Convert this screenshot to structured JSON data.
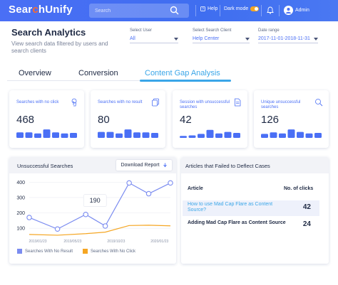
{
  "header": {
    "logo_prefix": "Sear",
    "logo_accent": "c",
    "logo_suffix": "hUnify",
    "search_placeholder": "Search",
    "help_label": "Help",
    "dark_mode_label": "Dark mode",
    "user_name": "Admin"
  },
  "page": {
    "title": "Search Analytics",
    "subtitle": "View search data filtered by users and search clients"
  },
  "filters": {
    "select_user": {
      "label": "Select User",
      "value": "All"
    },
    "search_client": {
      "label": "Select Search Client",
      "value": "Help Center"
    },
    "date_range": {
      "label": "Date range",
      "value": "2017-11-01-2018-11-31"
    }
  },
  "tabs": [
    {
      "label": "Overview",
      "active": false
    },
    {
      "label": "Conversion",
      "active": false
    },
    {
      "label": "Content Gap Analysis",
      "active": true
    }
  ],
  "metrics": [
    {
      "label": "Searches with no click",
      "value": "468",
      "icon": "touch-icon",
      "bars": [
        0.55,
        0.55,
        0.45,
        0.85,
        0.55,
        0.45,
        0.5
      ]
    },
    {
      "label": "Searches with no result",
      "value": "80",
      "icon": "copy-icon",
      "bars": [
        0.6,
        0.6,
        0.45,
        0.85,
        0.55,
        0.55,
        0.5
      ]
    },
    {
      "label": "Session with unsuccessful searches",
      "value": "42",
      "icon": "document-icon",
      "bars": [
        0.2,
        0.25,
        0.4,
        0.8,
        0.45,
        0.6,
        0.5
      ]
    },
    {
      "label": "Unique unsuccessful searches",
      "value": "126",
      "icon": "search-refresh-icon",
      "bars": [
        0.4,
        0.55,
        0.45,
        0.85,
        0.6,
        0.45,
        0.5
      ]
    }
  ],
  "unsuccessful_searches": {
    "title": "Unsuccessful Searches",
    "download_label": "Download Report",
    "tooltip_value": "190",
    "legend": [
      "Searches With No Result",
      "Searches With No Click"
    ]
  },
  "articles": {
    "title": "Articles that Failed to Deflect Cases",
    "col_article": "Article",
    "col_clicks": "No. of clicks",
    "rows": [
      {
        "article": "How to use Mad Cap Flare as Content Source?",
        "clicks": "42",
        "is_link": true
      },
      {
        "article": "Adding Mad Cap Flare as Content Source",
        "clicks": "24",
        "is_link": false
      }
    ]
  },
  "colors": {
    "primary": "#4a6ff5",
    "accent_orange": "#ff6a2b",
    "tab_active": "#3aa6e8",
    "series_no_result": "#7b8cf0",
    "series_no_click": "#f5a623",
    "link": "#3aa6e8"
  },
  "chart_data": {
    "type": "line",
    "title": "Unsuccessful Searches",
    "xlabel": "",
    "ylabel": "",
    "x": [
      "2019/01/23",
      "2019/05/23",
      "2019/10/23",
      "2020/01/23"
    ],
    "x_positions": [
      0,
      1,
      2,
      3
    ],
    "ylim": [
      50,
      420
    ],
    "yticks": [
      100,
      200,
      300,
      400
    ],
    "grid": true,
    "legend_position": "bottom",
    "series": [
      {
        "name": "Searches With No Result",
        "color": "#7b8cf0",
        "x": [
          0,
          0.65,
          1.3,
          1.75,
          2.3,
          2.75,
          3.25
        ],
        "values": [
          170,
          95,
          190,
          115,
          395,
          325,
          395
        ]
      },
      {
        "name": "Searches With No Click",
        "color": "#f5a623",
        "x": [
          0,
          0.65,
          1.3,
          1.75,
          2.3,
          2.75,
          3.25
        ],
        "values": [
          60,
          55,
          65,
          75,
          118,
          120,
          116
        ]
      }
    ]
  }
}
